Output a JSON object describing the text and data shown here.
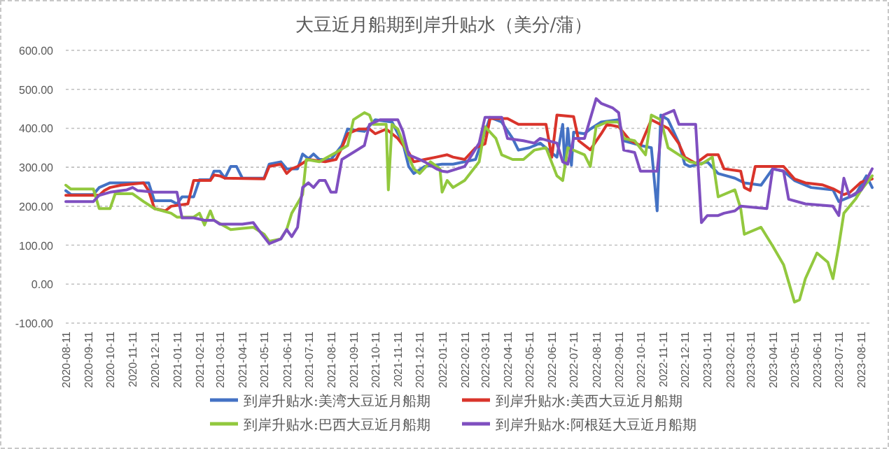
{
  "chart_data": {
    "type": "line",
    "title": "大豆近月船期到岸升贴水（美分/蒲）",
    "xlim": [
      "2020-08-11",
      "2023-08-26"
    ],
    "xticks": [
      "2020-08-11",
      "2020-09-11",
      "2020-10-11",
      "2020-11-11",
      "2020-12-11",
      "2021-01-11",
      "2021-02-11",
      "2021-03-11",
      "2021-04-11",
      "2021-05-11",
      "2021-06-11",
      "2021-07-11",
      "2021-08-11",
      "2021-09-11",
      "2021-10-11",
      "2021-11-11",
      "2021-12-11",
      "2022-01-11",
      "2022-02-11",
      "2022-03-11",
      "2022-04-11",
      "2022-05-11",
      "2022-06-11",
      "2022-07-11",
      "2022-08-11",
      "2022-09-11",
      "2022-10-11",
      "2022-11-11",
      "2022-12-11",
      "2023-01-11",
      "2023-02-11",
      "2023-03-11",
      "2023-04-11",
      "2023-05-11",
      "2023-06-11",
      "2023-07-11",
      "2023-08-11"
    ],
    "ylim": [
      -100,
      600
    ],
    "yticks": [
      {
        "value": -100,
        "label": "-100.00"
      },
      {
        "value": 0,
        "label": "0.00"
      },
      {
        "value": 100,
        "label": "100.00"
      },
      {
        "value": 200,
        "label": "200.00"
      },
      {
        "value": 300,
        "label": "300.00"
      },
      {
        "value": 400,
        "label": "400.00"
      },
      {
        "value": 500,
        "label": "500.00"
      },
      {
        "value": 600,
        "label": "600.00"
      }
    ],
    "grid": "y",
    "legend": "bottom",
    "series": [
      {
        "name": "到岸升贴水:美湾大豆近月船期",
        "color": "#4472c4",
        "x": [
          "2020-08-11",
          "2020-08-18",
          "2020-09-18",
          "2020-09-26",
          "2020-10-11",
          "2020-12-03",
          "2020-12-11",
          "2021-01-03",
          "2021-01-11",
          "2021-01-18",
          "2021-02-03",
          "2021-02-11",
          "2021-02-26",
          "2021-03-03",
          "2021-03-11",
          "2021-03-18",
          "2021-03-26",
          "2021-04-03",
          "2021-04-11",
          "2021-05-11",
          "2021-05-18",
          "2021-06-03",
          "2021-06-11",
          "2021-06-26",
          "2021-07-03",
          "2021-07-11",
          "2021-07-18",
          "2021-07-26",
          "2021-08-11",
          "2021-08-26",
          "2021-09-03",
          "2021-09-26",
          "2021-10-11",
          "2021-11-03",
          "2021-11-18",
          "2021-11-26",
          "2021-12-03",
          "2021-12-18",
          "2022-01-11",
          "2022-01-26",
          "2022-02-26",
          "2022-03-18",
          "2022-04-03",
          "2022-04-18",
          "2022-04-26",
          "2022-05-11",
          "2022-05-26",
          "2022-06-18",
          "2022-06-26",
          "2022-06-29",
          "2022-07-03",
          "2022-07-08",
          "2022-07-11",
          "2022-07-26",
          "2022-08-03",
          "2022-08-18",
          "2022-09-11",
          "2022-09-18",
          "2022-10-11",
          "2022-10-26",
          "2022-11-03",
          "2022-11-08",
          "2022-11-18",
          "2022-12-03",
          "2022-12-11",
          "2022-12-18",
          "2023-01-11",
          "2023-01-26",
          "2023-02-18",
          "2023-03-03",
          "2023-03-26",
          "2023-04-11",
          "2023-04-26",
          "2023-05-11",
          "2023-06-03",
          "2023-07-03",
          "2023-07-11",
          "2023-08-03",
          "2023-08-18",
          "2023-08-26"
        ],
        "values": [
          240,
          230,
          230,
          248,
          260,
          260,
          214,
          214,
          206,
          224,
          224,
          268,
          268,
          290,
          290,
          272,
          302,
          302,
          272,
          272,
          308,
          314,
          296,
          296,
          334,
          322,
          334,
          320,
          320,
          356,
          398,
          392,
          422,
          416,
          362,
          302,
          284,
          302,
          308,
          308,
          320,
          428,
          416,
          374,
          344,
          350,
          362,
          326,
          410,
          300,
          400,
          305,
          390,
          386,
          398,
          416,
          422,
          368,
          356,
          350,
          188,
          434,
          422,
          362,
          308,
          302,
          314,
          284,
          272,
          260,
          254,
          296,
          290,
          266,
          248,
          242,
          212,
          230,
          278,
          248
        ]
      },
      {
        "name": "到岸升贴水:美西大豆近月船期",
        "color": "#d9342b",
        "x": [
          "2020-08-11",
          "2020-09-26",
          "2020-10-03",
          "2020-10-11",
          "2020-10-26",
          "2020-11-26",
          "2020-12-03",
          "2020-12-11",
          "2020-12-26",
          "2021-01-03",
          "2021-01-26",
          "2021-02-03",
          "2021-02-26",
          "2021-03-03",
          "2021-03-11",
          "2021-03-18",
          "2021-05-11",
          "2021-05-18",
          "2021-06-03",
          "2021-06-11",
          "2021-06-18",
          "2021-06-26",
          "2021-07-11",
          "2021-08-03",
          "2021-08-18",
          "2021-08-26",
          "2021-09-03",
          "2021-09-18",
          "2021-10-03",
          "2021-10-11",
          "2021-10-26",
          "2021-11-11",
          "2021-11-26",
          "2021-12-03",
          "2021-12-18",
          "2022-01-03",
          "2022-01-18",
          "2022-01-26",
          "2022-02-11",
          "2022-02-26",
          "2022-03-11",
          "2022-03-18",
          "2022-04-11",
          "2022-04-26",
          "2022-06-03",
          "2022-06-11",
          "2022-06-18",
          "2022-07-11",
          "2022-07-18",
          "2022-08-03",
          "2022-08-18",
          "2022-08-26",
          "2022-09-11",
          "2022-09-26",
          "2022-10-11",
          "2022-10-26",
          "2022-11-18",
          "2022-12-03",
          "2022-12-11",
          "2022-12-26",
          "2023-01-11",
          "2023-01-26",
          "2023-02-03",
          "2023-02-26",
          "2023-03-03",
          "2023-03-11",
          "2023-03-18",
          "2023-04-26",
          "2023-05-11",
          "2023-05-26",
          "2023-06-18",
          "2023-07-03",
          "2023-07-18",
          "2023-07-26",
          "2023-08-11",
          "2023-08-26"
        ],
        "values": [
          228,
          228,
          240,
          248,
          254,
          260,
          240,
          194,
          188,
          200,
          206,
          266,
          266,
          280,
          278,
          272,
          270,
          302,
          308,
          284,
          296,
          302,
          320,
          314,
          320,
          350,
          386,
          398,
          398,
          386,
          398,
          374,
          338,
          314,
          320,
          326,
          332,
          326,
          320,
          350,
          360,
          425,
          425,
          410,
          410,
          326,
          434,
          430,
          368,
          345,
          386,
          410,
          404,
          370,
          356,
          422,
          400,
          360,
          326,
          310,
          332,
          332,
          296,
          290,
          248,
          240,
          302,
          302,
          270,
          260,
          255,
          245,
          230,
          235,
          262,
          270
        ]
      },
      {
        "name": "到岸升贴水:巴西大豆近月船期",
        "color": "#92c83e",
        "x": [
          "2020-08-11",
          "2020-08-18",
          "2020-09-18",
          "2020-09-26",
          "2020-10-11",
          "2020-10-18",
          "2020-11-11",
          "2020-11-26",
          "2020-12-11",
          "2021-01-03",
          "2021-01-11",
          "2021-02-03",
          "2021-02-11",
          "2021-02-18",
          "2021-02-26",
          "2021-03-03",
          "2021-03-26",
          "2021-04-26",
          "2021-05-11",
          "2021-05-18",
          "2021-06-03",
          "2021-06-11",
          "2021-06-18",
          "2021-07-03",
          "2021-07-08",
          "2021-07-26",
          "2021-08-18",
          "2021-09-03",
          "2021-09-11",
          "2021-09-26",
          "2021-10-03",
          "2021-10-08",
          "2021-10-26",
          "2021-10-29",
          "2021-11-03",
          "2021-11-11",
          "2021-11-26",
          "2021-12-03",
          "2021-12-11",
          "2021-12-26",
          "2022-01-08",
          "2022-01-11",
          "2022-01-18",
          "2022-01-26",
          "2022-02-11",
          "2022-02-26",
          "2022-03-03",
          "2022-03-11",
          "2022-03-26",
          "2022-04-03",
          "2022-04-18",
          "2022-05-03",
          "2022-05-18",
          "2022-06-03",
          "2022-06-18",
          "2022-06-26",
          "2022-07-03",
          "2022-07-26",
          "2022-08-03",
          "2022-08-11",
          "2022-08-26",
          "2022-09-11",
          "2022-09-18",
          "2022-10-03",
          "2022-10-18",
          "2022-10-26",
          "2022-11-08",
          "2022-11-18",
          "2022-12-03",
          "2022-12-18",
          "2023-01-03",
          "2023-01-18",
          "2023-01-26",
          "2023-02-18",
          "2023-02-26",
          "2023-03-03",
          "2023-03-26",
          "2023-04-11",
          "2023-04-26",
          "2023-05-11",
          "2023-05-18",
          "2023-05-26",
          "2023-06-11",
          "2023-06-26",
          "2023-07-03",
          "2023-07-11",
          "2023-07-18",
          "2023-08-03",
          "2023-08-11",
          "2023-08-26"
        ],
        "values": [
          254,
          244,
          244,
          194,
          194,
          232,
          232,
          212,
          194,
          182,
          172,
          172,
          182,
          152,
          188,
          164,
          140,
          146,
          128,
          110,
          116,
          140,
          182,
          230,
          320,
          314,
          338,
          356,
          422,
          440,
          434,
          410,
          410,
          242,
          410,
          398,
          326,
          296,
          284,
          314,
          296,
          236,
          266,
          248,
          266,
          302,
          314,
          404,
          374,
          332,
          320,
          320,
          344,
          350,
          278,
          266,
          350,
          332,
          302,
          404,
          416,
          416,
          374,
          368,
          332,
          434,
          422,
          350,
          332,
          314,
          308,
          326,
          224,
          242,
          194,
          128,
          146,
          98,
          50,
          -46,
          -40,
          14,
          80,
          56,
          14,
          98,
          182,
          218,
          242,
          278
        ]
      },
      {
        "name": "到岸升贴水:阿根廷大豆近月船期",
        "color": "#7f4fc0",
        "x": [
          "2020-08-11",
          "2020-09-18",
          "2020-09-26",
          "2020-10-11",
          "2020-11-03",
          "2020-11-11",
          "2020-11-18",
          "2020-12-11",
          "2021-01-11",
          "2021-01-18",
          "2021-02-03",
          "2021-02-18",
          "2021-03-03",
          "2021-03-11",
          "2021-04-11",
          "2021-04-26",
          "2021-05-03",
          "2021-05-18",
          "2021-06-03",
          "2021-06-11",
          "2021-06-18",
          "2021-06-26",
          "2021-07-03",
          "2021-07-11",
          "2021-07-18",
          "2021-07-26",
          "2021-08-03",
          "2021-08-11",
          "2021-08-18",
          "2021-08-26",
          "2021-09-26",
          "2021-10-03",
          "2021-10-18",
          "2021-11-11",
          "2021-11-18",
          "2021-11-26",
          "2021-12-11",
          "2021-12-18",
          "2022-01-03",
          "2022-01-11",
          "2022-01-18",
          "2022-02-11",
          "2022-03-03",
          "2022-03-11",
          "2022-04-03",
          "2022-04-11",
          "2022-05-03",
          "2022-05-18",
          "2022-05-26",
          "2022-06-18",
          "2022-06-26",
          "2022-07-03",
          "2022-07-11",
          "2022-07-26",
          "2022-08-11",
          "2022-08-18",
          "2022-09-03",
          "2022-09-11",
          "2022-09-18",
          "2022-10-03",
          "2022-10-11",
          "2022-11-03",
          "2022-11-11",
          "2022-11-26",
          "2022-12-03",
          "2022-12-26",
          "2023-01-03",
          "2023-01-11",
          "2023-01-26",
          "2023-02-03",
          "2023-02-18",
          "2023-02-26",
          "2023-04-03",
          "2023-04-11",
          "2023-04-26",
          "2023-05-03",
          "2023-05-26",
          "2023-07-03",
          "2023-07-11",
          "2023-07-18",
          "2023-07-26",
          "2023-08-11",
          "2023-08-26"
        ],
        "values": [
          212,
          212,
          228,
          236,
          242,
          248,
          240,
          236,
          236,
          170,
          170,
          164,
          164,
          154,
          154,
          158,
          140,
          104,
          116,
          140,
          122,
          146,
          248,
          260,
          248,
          266,
          266,
          236,
          236,
          320,
          356,
          410,
          422,
          422,
          392,
          332,
          320,
          314,
          296,
          290,
          288,
          302,
          362,
          428,
          428,
          374,
          368,
          362,
          374,
          362,
          314,
          308,
          374,
          374,
          476,
          464,
          452,
          440,
          344,
          338,
          290,
          290,
          434,
          446,
          410,
          410,
          158,
          176,
          176,
          182,
          188,
          200,
          194,
          296,
          290,
          218,
          206,
          200,
          176,
          272,
          224,
          242,
          296
        ]
      }
    ]
  }
}
